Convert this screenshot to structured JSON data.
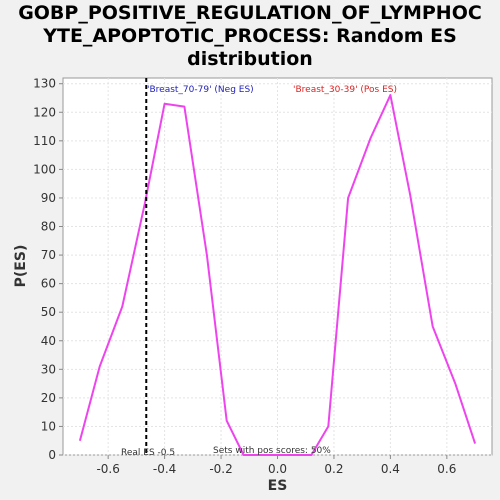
{
  "chart_data": {
    "type": "line",
    "title": "GOBP_POSITIVE_REGULATION_OF_LYMPHOC\nYTE_APOPTOTIC_PROCESS: Random ES\ndistribution",
    "xlabel": "ES",
    "ylabel": "P(ES)",
    "xlim": [
      -0.76,
      0.76
    ],
    "ylim": [
      0,
      132
    ],
    "xticks": [
      -0.6,
      -0.4,
      -0.2,
      0.0,
      0.2,
      0.4,
      0.6
    ],
    "xtick_labels": [
      "-0.6",
      "-0.4",
      "-0.2",
      "0.0",
      "0.2",
      "0.4",
      "0.6"
    ],
    "yticks": [
      0,
      10,
      20,
      30,
      40,
      50,
      60,
      70,
      80,
      90,
      100,
      110,
      120,
      130
    ],
    "grid": true,
    "series": [
      {
        "color": "#ee44ee",
        "x": [
          -0.7,
          -0.63,
          -0.55,
          -0.47,
          -0.4,
          -0.33,
          -0.25,
          -0.18,
          -0.12,
          -0.05,
          0.0,
          0.05,
          0.12,
          0.18,
          0.25,
          0.33,
          0.4,
          0.47,
          0.55,
          0.63,
          0.7
        ],
        "y": [
          5,
          31,
          52,
          88,
          123,
          122,
          70,
          12,
          0,
          0,
          0,
          0,
          0,
          10,
          90,
          111,
          126,
          91,
          45,
          25,
          4
        ]
      }
    ],
    "annotations": {
      "neg_label": "'Breast_70-79' (Neg ES)",
      "neg_color": "#2222bb",
      "pos_label": "'Breast_30-39' (Pos ES)",
      "pos_color": "#dd2222",
      "real_es_label": "Real ES -0.5",
      "real_es_value": -0.465,
      "sets_label": "Sets with pos scores: 50%"
    }
  }
}
